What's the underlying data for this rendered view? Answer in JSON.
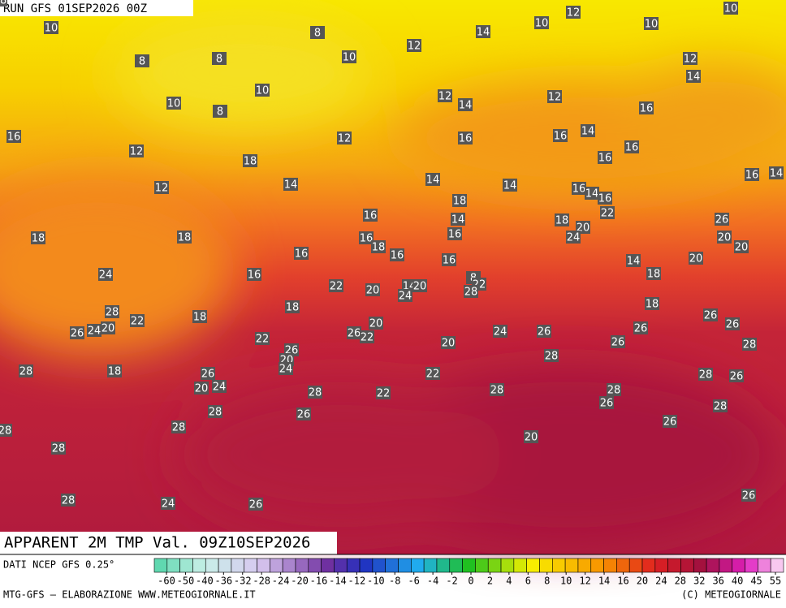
{
  "header": {
    "run": "RUN GFS 01SEP2026 00Z",
    "title": "APPARENT 2M TMP Val. 09Z10SEP2026"
  },
  "map": {
    "labels": [
      10,
      8,
      8,
      8,
      10,
      12,
      14,
      10,
      12,
      10,
      10,
      12,
      14,
      10,
      10,
      8,
      12,
      14,
      12,
      16,
      16,
      12,
      12,
      16,
      16,
      14,
      16,
      16,
      18,
      12,
      14,
      14,
      14,
      16,
      14,
      16,
      18,
      16,
      14,
      16,
      14,
      18,
      20,
      22,
      24,
      26,
      18,
      18,
      16,
      18,
      16,
      20,
      20,
      16,
      16,
      16,
      14,
      20,
      24,
      16,
      18,
      22,
      20,
      14,
      20,
      8,
      22,
      24,
      28,
      28,
      18,
      18,
      26,
      24,
      20,
      22,
      18,
      20,
      26,
      26,
      22,
      24,
      26,
      26,
      26,
      22,
      20,
      26,
      28,
      28,
      26,
      20,
      24,
      28,
      18,
      26,
      20,
      24,
      22,
      28,
      26,
      28,
      22,
      28,
      28,
      26,
      28,
      28,
      26,
      26,
      28,
      28,
      20,
      28,
      26,
      28,
      24,
      26,
      28
    ]
  },
  "legend": {
    "source": "DATI NCEP GFS 0.25°",
    "ticks": [
      -60,
      -50,
      -40,
      -36,
      -32,
      -28,
      -24,
      -20,
      -16,
      -14,
      -12,
      -10,
      -8,
      -6,
      -4,
      -2,
      0,
      2,
      4,
      6,
      8,
      10,
      12,
      14,
      16,
      20,
      24,
      28,
      32,
      36,
      40,
      45,
      55
    ]
  },
  "footer": {
    "left": "MTG-GFS — ELABORAZIONE WWW.METEOGIORNALE.IT",
    "right": "(C) METEOGIORNALE"
  }
}
